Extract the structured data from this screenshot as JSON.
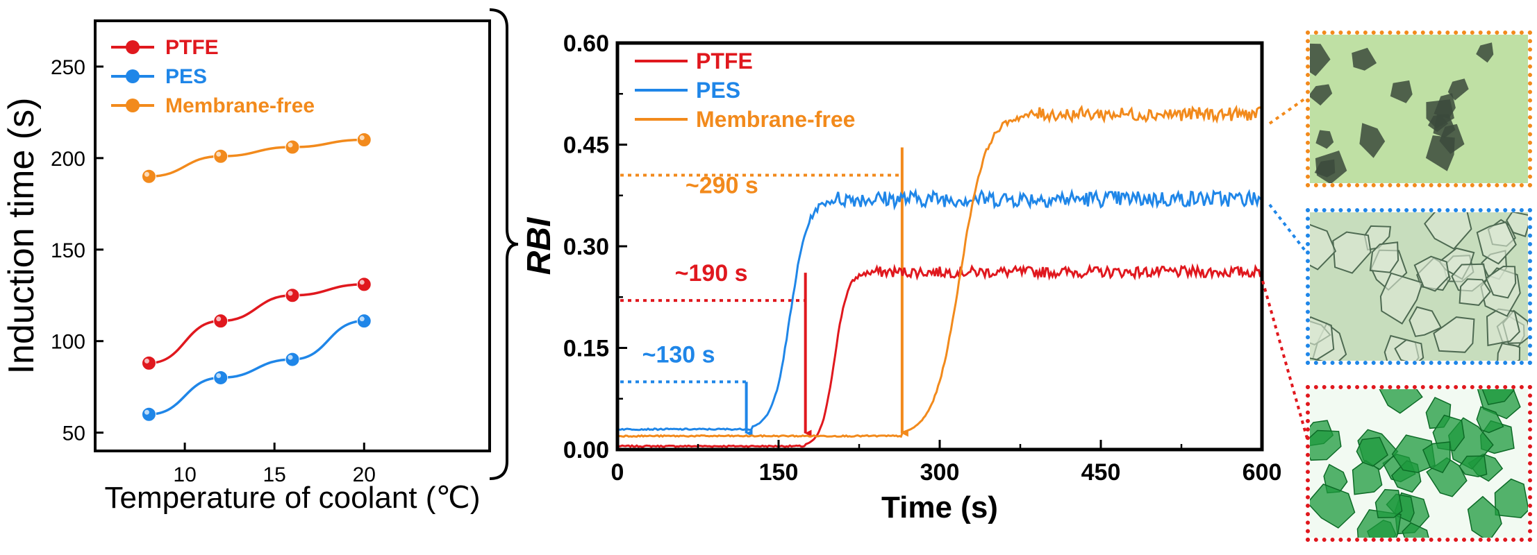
{
  "colors": {
    "ptfe": "#e0181e",
    "pes": "#1f86e8",
    "membrane_free": "#f28a1c"
  },
  "chart_data": [
    {
      "type": "line",
      "title": "",
      "xlabel": "Temperature of coolant (℃)",
      "ylabel": "Induction time (s)",
      "xlim": [
        5,
        27
      ],
      "ylim": [
        40,
        275
      ],
      "xticks": [
        10,
        15,
        20
      ],
      "yticks": [
        50,
        100,
        150,
        200,
        250
      ],
      "legend_position": "top-left",
      "grid": false,
      "x": [
        8,
        12,
        16,
        20
      ],
      "series": [
        {
          "name": "PTFE",
          "color": "#e0181e",
          "values": [
            88,
            111,
            125,
            131
          ]
        },
        {
          "name": "PES",
          "color": "#1f86e8",
          "values": [
            60,
            80,
            90,
            111
          ]
        },
        {
          "name": "Membrane-free",
          "color": "#f28a1c",
          "values": [
            190,
            201,
            206,
            210
          ]
        }
      ]
    },
    {
      "type": "line",
      "title": "",
      "xlabel": "Time (s)",
      "ylabel": "RBI",
      "xlim": [
        0,
        600
      ],
      "ylim": [
        0,
        0.6
      ],
      "xticks": [
        0,
        150,
        300,
        450,
        600
      ],
      "ytick_labels": [
        "0.00",
        "0.15",
        "0.30",
        "0.45",
        "0.60"
      ],
      "legend_position": "top-left",
      "grid": false,
      "series": [
        {
          "name": "PTFE",
          "color": "#e0181e",
          "baseline": 0.005,
          "onset": 175,
          "rise_end": 235,
          "plateau": 0.262,
          "noise": 0.008
        },
        {
          "name": "PES",
          "color": "#1f86e8",
          "baseline": 0.03,
          "onset": 125,
          "rise_end": 205,
          "plateau": 0.37,
          "noise": 0.012
        },
        {
          "name": "Membrane-free",
          "color": "#f28a1c",
          "baseline": 0.02,
          "onset": 265,
          "rise_end": 385,
          "plateau": 0.495,
          "noise": 0.01
        }
      ],
      "annotations": [
        {
          "text": "~130 s",
          "color": "#1f86e8",
          "arrow_x": 120,
          "dotted_y": 0.1
        },
        {
          "text": "~190 s",
          "color": "#e0181e",
          "arrow_x": 175,
          "dotted_y": 0.22
        },
        {
          "text": "~290 s",
          "color": "#f28a1c",
          "arrow_x": 265,
          "dotted_y": 0.405
        }
      ]
    }
  ],
  "micrographs": [
    {
      "name": "membrane-free",
      "border": "#f28a1c",
      "bg": "#bfe0a4",
      "crystal": "#3b4a3c"
    },
    {
      "name": "pes",
      "border": "#1f86e8",
      "bg": "#c7ddbd",
      "crystal": "#4e6a52"
    },
    {
      "name": "ptfe",
      "border": "#e0181e",
      "bg": "#f2faf2",
      "crystal": "#1e9a3e"
    }
  ]
}
